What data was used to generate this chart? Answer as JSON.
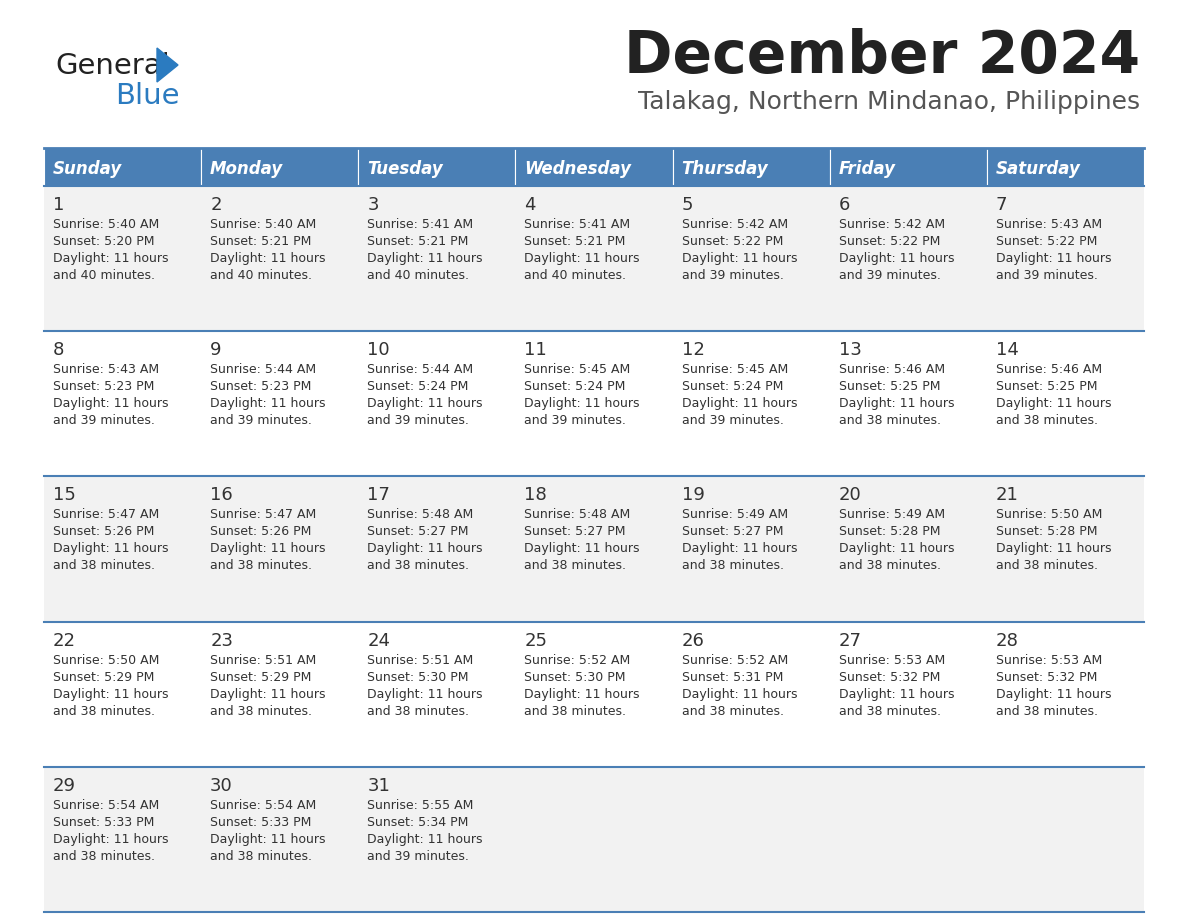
{
  "title": "December 2024",
  "subtitle": "Talakag, Northern Mindanao, Philippines",
  "days_of_week": [
    "Sunday",
    "Monday",
    "Tuesday",
    "Wednesday",
    "Thursday",
    "Friday",
    "Saturday"
  ],
  "header_bg": "#4a7fb5",
  "header_text": "#FFFFFF",
  "row_bg_even": "#f2f2f2",
  "row_bg_odd": "#ffffff",
  "cell_text_color": "#333333",
  "day_num_color": "#333333",
  "border_color": "#4a7fb5",
  "title_color": "#222222",
  "subtitle_color": "#555555",
  "logo_general_color": "#222222",
  "logo_blue_color": "#2B7BC0",
  "calendar_data": [
    [
      {
        "day": 1,
        "sunrise": "5:40 AM",
        "sunset": "5:20 PM",
        "daylight": "11 hours and 40 minutes."
      },
      {
        "day": 2,
        "sunrise": "5:40 AM",
        "sunset": "5:21 PM",
        "daylight": "11 hours and 40 minutes."
      },
      {
        "day": 3,
        "sunrise": "5:41 AM",
        "sunset": "5:21 PM",
        "daylight": "11 hours and 40 minutes."
      },
      {
        "day": 4,
        "sunrise": "5:41 AM",
        "sunset": "5:21 PM",
        "daylight": "11 hours and 40 minutes."
      },
      {
        "day": 5,
        "sunrise": "5:42 AM",
        "sunset": "5:22 PM",
        "daylight": "11 hours and 39 minutes."
      },
      {
        "day": 6,
        "sunrise": "5:42 AM",
        "sunset": "5:22 PM",
        "daylight": "11 hours and 39 minutes."
      },
      {
        "day": 7,
        "sunrise": "5:43 AM",
        "sunset": "5:22 PM",
        "daylight": "11 hours and 39 minutes."
      }
    ],
    [
      {
        "day": 8,
        "sunrise": "5:43 AM",
        "sunset": "5:23 PM",
        "daylight": "11 hours and 39 minutes."
      },
      {
        "day": 9,
        "sunrise": "5:44 AM",
        "sunset": "5:23 PM",
        "daylight": "11 hours and 39 minutes."
      },
      {
        "day": 10,
        "sunrise": "5:44 AM",
        "sunset": "5:24 PM",
        "daylight": "11 hours and 39 minutes."
      },
      {
        "day": 11,
        "sunrise": "5:45 AM",
        "sunset": "5:24 PM",
        "daylight": "11 hours and 39 minutes."
      },
      {
        "day": 12,
        "sunrise": "5:45 AM",
        "sunset": "5:24 PM",
        "daylight": "11 hours and 39 minutes."
      },
      {
        "day": 13,
        "sunrise": "5:46 AM",
        "sunset": "5:25 PM",
        "daylight": "11 hours and 38 minutes."
      },
      {
        "day": 14,
        "sunrise": "5:46 AM",
        "sunset": "5:25 PM",
        "daylight": "11 hours and 38 minutes."
      }
    ],
    [
      {
        "day": 15,
        "sunrise": "5:47 AM",
        "sunset": "5:26 PM",
        "daylight": "11 hours and 38 minutes."
      },
      {
        "day": 16,
        "sunrise": "5:47 AM",
        "sunset": "5:26 PM",
        "daylight": "11 hours and 38 minutes."
      },
      {
        "day": 17,
        "sunrise": "5:48 AM",
        "sunset": "5:27 PM",
        "daylight": "11 hours and 38 minutes."
      },
      {
        "day": 18,
        "sunrise": "5:48 AM",
        "sunset": "5:27 PM",
        "daylight": "11 hours and 38 minutes."
      },
      {
        "day": 19,
        "sunrise": "5:49 AM",
        "sunset": "5:27 PM",
        "daylight": "11 hours and 38 minutes."
      },
      {
        "day": 20,
        "sunrise": "5:49 AM",
        "sunset": "5:28 PM",
        "daylight": "11 hours and 38 minutes."
      },
      {
        "day": 21,
        "sunrise": "5:50 AM",
        "sunset": "5:28 PM",
        "daylight": "11 hours and 38 minutes."
      }
    ],
    [
      {
        "day": 22,
        "sunrise": "5:50 AM",
        "sunset": "5:29 PM",
        "daylight": "11 hours and 38 minutes."
      },
      {
        "day": 23,
        "sunrise": "5:51 AM",
        "sunset": "5:29 PM",
        "daylight": "11 hours and 38 minutes."
      },
      {
        "day": 24,
        "sunrise": "5:51 AM",
        "sunset": "5:30 PM",
        "daylight": "11 hours and 38 minutes."
      },
      {
        "day": 25,
        "sunrise": "5:52 AM",
        "sunset": "5:30 PM",
        "daylight": "11 hours and 38 minutes."
      },
      {
        "day": 26,
        "sunrise": "5:52 AM",
        "sunset": "5:31 PM",
        "daylight": "11 hours and 38 minutes."
      },
      {
        "day": 27,
        "sunrise": "5:53 AM",
        "sunset": "5:32 PM",
        "daylight": "11 hours and 38 minutes."
      },
      {
        "day": 28,
        "sunrise": "5:53 AM",
        "sunset": "5:32 PM",
        "daylight": "11 hours and 38 minutes."
      }
    ],
    [
      {
        "day": 29,
        "sunrise": "5:54 AM",
        "sunset": "5:33 PM",
        "daylight": "11 hours and 38 minutes."
      },
      {
        "day": 30,
        "sunrise": "5:54 AM",
        "sunset": "5:33 PM",
        "daylight": "11 hours and 38 minutes."
      },
      {
        "day": 31,
        "sunrise": "5:55 AM",
        "sunset": "5:34 PM",
        "daylight": "11 hours and 39 minutes."
      },
      null,
      null,
      null,
      null
    ]
  ]
}
